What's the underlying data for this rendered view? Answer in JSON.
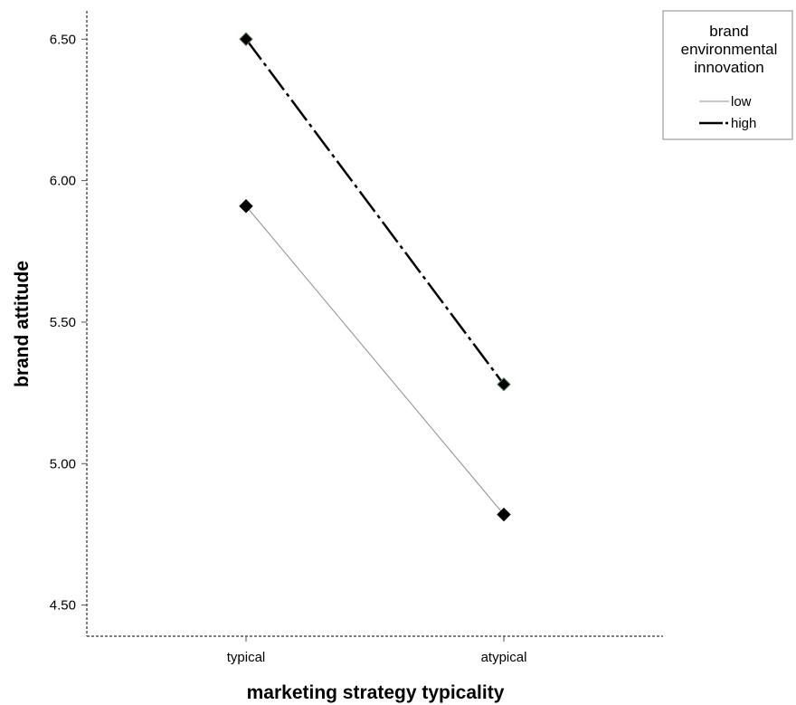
{
  "chart_data": {
    "type": "line",
    "xlabel": "marketing strategy typicality",
    "ylabel": "brand attitude",
    "categories": [
      "typical",
      "atypical"
    ],
    "ylim": [
      4.39,
      6.6
    ],
    "yticks": [
      "4.50",
      "5.00",
      "5.50",
      "6.00",
      "6.50"
    ],
    "grid": false,
    "legend": {
      "title": "brand environmental innovation",
      "title_lines": [
        "brand",
        "environmental",
        "innovation"
      ],
      "placement": "top-right"
    },
    "series": [
      {
        "name": "low",
        "values": [
          5.91,
          4.82
        ],
        "color": "#8c8c8c",
        "style": "solid"
      },
      {
        "name": "high",
        "values": [
          6.5,
          5.28
        ],
        "color": "#000000",
        "style": "dash-dot"
      }
    ]
  }
}
